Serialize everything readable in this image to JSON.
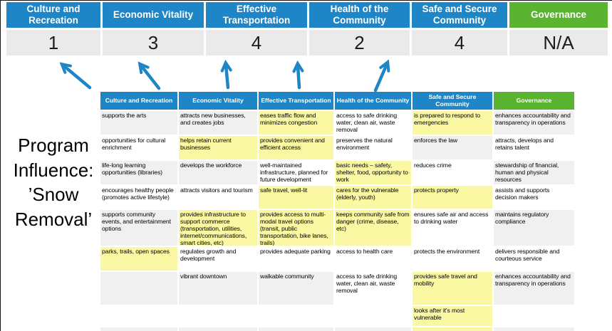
{
  "colors": {
    "blue": "#1E86C7",
    "green": "#5BB431",
    "yellow": "#FBF8A3",
    "gray_cell": "#F0F0F0",
    "score_bg": "#EAEAEA",
    "arrow": "#1E86C7"
  },
  "program_label": {
    "lines": [
      "Program",
      "Influence:",
      "’Snow",
      "Removal’"
    ]
  },
  "scoreboard": {
    "categories": [
      {
        "label": "Culture and Recreation",
        "score": "1",
        "color": "blue"
      },
      {
        "label": "Economic Vitality",
        "score": "3",
        "color": "blue"
      },
      {
        "label": "Effective Transportation",
        "score": "4",
        "color": "blue"
      },
      {
        "label": "Health of the Community",
        "score": "2",
        "color": "blue"
      },
      {
        "label": "Safe and Secure Community",
        "score": "4",
        "color": "blue"
      },
      {
        "label": "Governance",
        "score": "N/A",
        "color": "green"
      }
    ]
  },
  "matrix": {
    "headers": [
      {
        "label": "Culture and Recreation",
        "color": "blue"
      },
      {
        "label": "Economic Vitality",
        "color": "blue"
      },
      {
        "label": "Effective Transportation",
        "color": "blue"
      },
      {
        "label": "Health of the Community",
        "color": "blue"
      },
      {
        "label": "Safe and Secure Community",
        "color": "blue"
      },
      {
        "label": "Governance",
        "color": "green"
      }
    ],
    "rows": [
      {
        "cells": [
          {
            "text": "supports the arts",
            "bg": "gray"
          },
          {
            "text": "attracts new businesses, and creates jobs",
            "bg": "gray"
          },
          {
            "text": "eases traffic flow and minimizes congestion",
            "bg": "yellow"
          },
          {
            "text": "access to safe drinking water, clean air, waste removal",
            "bg": "white"
          },
          {
            "text": "is prepared to respond to emergencies",
            "bg": "yellow"
          },
          {
            "text": "enhances accountability and transparency in operations",
            "bg": "gray"
          }
        ]
      },
      {
        "cells": [
          {
            "text": "opportunities for cultural enrichment",
            "bg": "white"
          },
          {
            "text": "helps retain current businesses",
            "bg": "yellow"
          },
          {
            "text": "provides convenient and efficient access",
            "bg": "yellow"
          },
          {
            "text": "preserves the natural environment",
            "bg": "white"
          },
          {
            "text": "enforces the law",
            "bg": "gray"
          },
          {
            "text": "attracts, develops and retains talent",
            "bg": "white"
          }
        ]
      },
      {
        "cells": [
          {
            "text": "life-long learning opportunities (libraries)",
            "bg": "gray"
          },
          {
            "text": "develops the workforce",
            "bg": "gray"
          },
          {
            "text": "well-maintained infrastructure, planned for future development",
            "bg": "white"
          },
          {
            "text": "basic needs – safety, shelter, food, opportunity to work",
            "bg": "yellow"
          },
          {
            "text": "reduces crime",
            "bg": "white"
          },
          {
            "text": "stewardship of financial, human and physical resources",
            "bg": "gray"
          }
        ]
      },
      {
        "cells": [
          {
            "text": "encourages healthy people (promotes active lifestyle)",
            "bg": "white"
          },
          {
            "text": "attracts visitors and tourism",
            "bg": "white"
          },
          {
            "text": "safe travel, well-lit",
            "bg": "yellow"
          },
          {
            "text": "cares for the vulnerable (elderly, youth)",
            "bg": "yellow"
          },
          {
            "text": "protects property",
            "bg": "yellow"
          },
          {
            "text": "assists and supports decision makers",
            "bg": "white"
          }
        ]
      },
      {
        "cells": [
          {
            "text": "supports community events, and entertainment options",
            "bg": "gray"
          },
          {
            "text": "provides infrastructure to support commerce (transportation, utilities, internet/communications, smart cities, etc)",
            "bg": "yellow"
          },
          {
            "text": "provides access to multi-modal travel options (transit, public transportation, bike lanes, trails)",
            "bg": "yellow"
          },
          {
            "text": "keeps community safe from danger (crime, disease, etc)",
            "bg": "yellow"
          },
          {
            "text": "ensures safe air and access to drinking water",
            "bg": "white"
          },
          {
            "text": "maintains regulatory compliance",
            "bg": "gray"
          }
        ]
      },
      {
        "cells": [
          {
            "text": "parks, trails, open spaces",
            "bg": "yellow"
          },
          {
            "text": "regulates growth and development",
            "bg": "white"
          },
          {
            "text": "provides adequate parking",
            "bg": "white"
          },
          {
            "text": "access to health care",
            "bg": "white"
          },
          {
            "text": "protects the environment",
            "bg": "white"
          },
          {
            "text": "delivers responsible and courteous service",
            "bg": "white"
          }
        ]
      },
      {
        "cells": [
          {
            "text": "",
            "bg": "gray"
          },
          {
            "text": "vibrant downtown",
            "bg": "gray"
          },
          {
            "text": "walkable community",
            "bg": "gray"
          },
          {
            "text": "access to safe drinking water, clean air, waste removal",
            "bg": "white"
          },
          {
            "text": "provides safe travel and mobility",
            "bg": "yellow"
          },
          {
            "text": "enhances accountability and transparency in operations",
            "bg": "gray"
          }
        ]
      },
      {
        "cells": [
          {
            "text": "",
            "bg": "white"
          },
          {
            "text": "",
            "bg": "white"
          },
          {
            "text": "",
            "bg": "white"
          },
          {
            "text": "",
            "bg": "white"
          },
          {
            "text": "looks after it's most vulnerable",
            "bg": "yellow"
          },
          {
            "text": "",
            "bg": "white"
          }
        ]
      },
      {
        "cells": [
          {
            "text": "",
            "bg": "gray"
          },
          {
            "text": "",
            "bg": "gray"
          },
          {
            "text": "",
            "bg": "gray"
          },
          {
            "text": "",
            "bg": "gray"
          },
          {
            "text": "",
            "bg": "yellow"
          },
          {
            "text": "",
            "bg": "gray"
          }
        ]
      }
    ]
  }
}
